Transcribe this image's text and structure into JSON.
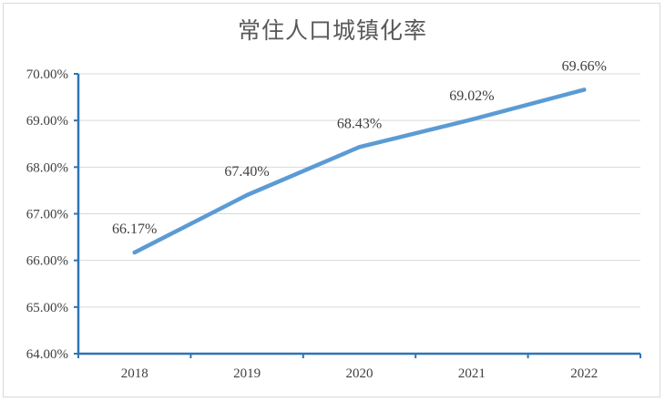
{
  "chart_data": {
    "type": "line",
    "title": "常住人口城镇化率",
    "xlabel": "",
    "ylabel": "",
    "categories": [
      "2018",
      "2019",
      "2020",
      "2021",
      "2022"
    ],
    "series": [
      {
        "values": [
          66.17,
          67.4,
          68.43,
          69.02,
          69.66
        ],
        "color": "#5b9bd5"
      }
    ],
    "data_labels": [
      "66.17%",
      "67.40%",
      "68.43%",
      "69.02%",
      "69.66%"
    ],
    "yticks": [
      "64.00%",
      "65.00%",
      "66.00%",
      "67.00%",
      "68.00%",
      "69.00%",
      "70.00%"
    ],
    "ylim": [
      64,
      70
    ],
    "grid": true,
    "legend": "none",
    "colors": {
      "line": "#5b9bd5",
      "axis": "#2e75b6",
      "grid": "#d9d9d9"
    }
  }
}
